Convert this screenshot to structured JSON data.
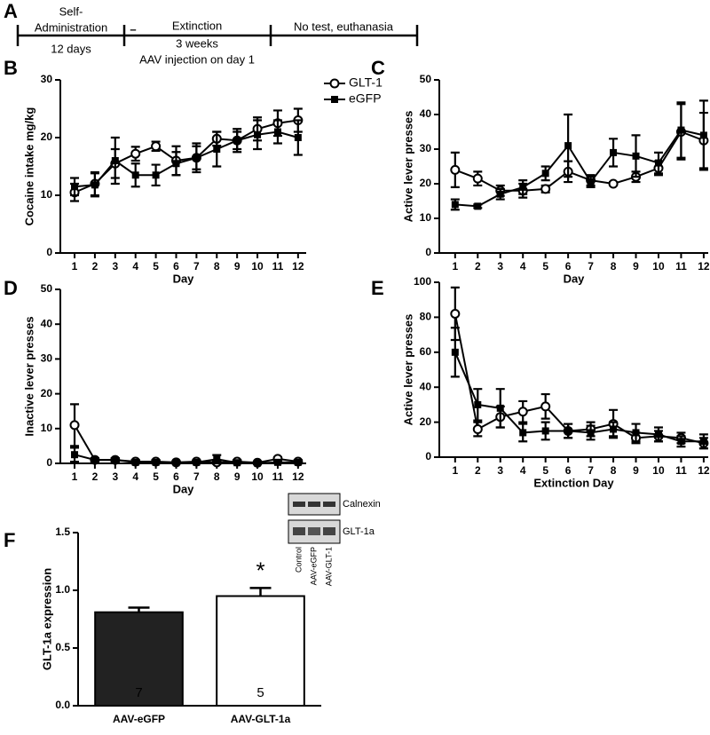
{
  "panel_labels": [
    "A",
    "B",
    "C",
    "D",
    "E",
    "F"
  ],
  "timeline": {
    "stages": [
      {
        "lines": [
          "Self-",
          "Administration"
        ],
        "sub": "12 days"
      },
      {
        "lines": [
          "Extinction"
        ],
        "sub": "3 weeks",
        "note": "AAV injection on day 1"
      },
      {
        "lines": [
          "No test, euthanasia"
        ]
      }
    ],
    "marker": "–"
  },
  "blot": {
    "bands": [
      "Calnexin",
      "GLT-1a"
    ],
    "lanes": [
      "Control",
      "AAV-eGFP",
      "AAV-GLT-1"
    ]
  },
  "chart_data": [
    {
      "type": "line",
      "ylabel": "Cocaine intake mg/kg",
      "xlabel": "Day",
      "x": [
        1,
        2,
        3,
        4,
        5,
        6,
        7,
        8,
        9,
        10,
        11,
        12
      ],
      "xlim": [
        0.3,
        12.4
      ],
      "xticks": [
        1,
        2,
        3,
        4,
        5,
        6,
        7,
        8,
        9,
        10,
        11,
        12
      ],
      "ylim": [
        0,
        30
      ],
      "yticks": [
        0,
        10,
        20,
        30
      ],
      "legend": "upper right",
      "series": [
        {
          "name": "GLT-1",
          "color": "#000000",
          "marker": "circle-open",
          "values": [
            10.5,
            12,
            15.5,
            17.2,
            18.5,
            16,
            16.5,
            19.8,
            19.5,
            21.5,
            22.5,
            23
          ],
          "errors": [
            1.5,
            2,
            2.5,
            1.2,
            0.8,
            2.5,
            2.5,
            1.2,
            1.5,
            2,
            2.2,
            2
          ]
        },
        {
          "name": "eGFP",
          "color": "#000000",
          "marker": "square",
          "values": [
            11.5,
            11.8,
            16,
            13.5,
            13.5,
            15.5,
            16.5,
            18,
            19.5,
            20.5,
            21,
            20
          ],
          "errors": [
            1.5,
            2,
            4,
            2,
            1.8,
            2,
            2,
            3,
            2,
            2.5,
            2,
            3
          ]
        }
      ]
    },
    {
      "type": "line",
      "ylabel": "Active lever presses",
      "xlabel": "Day",
      "x": [
        1,
        2,
        3,
        4,
        5,
        6,
        7,
        8,
        9,
        10,
        11,
        12
      ],
      "xlim": [
        0.3,
        12.2
      ],
      "xticks": [
        1,
        2,
        3,
        4,
        5,
        6,
        7,
        8,
        9,
        10,
        11,
        12
      ],
      "ylim": [
        0,
        50
      ],
      "yticks": [
        0,
        10,
        20,
        30,
        40,
        50
      ],
      "series": [
        {
          "name": "GLT-1",
          "color": "#000000",
          "marker": "circle-open",
          "values": [
            24,
            21.5,
            18,
            18,
            18.5,
            23.5,
            21,
            20,
            22,
            24.5,
            35,
            32.5
          ],
          "errors": [
            5,
            2,
            1.5,
            2,
            1,
            3,
            1.5,
            0.5,
            1.5,
            2,
            8,
            8
          ]
        },
        {
          "name": "eGFP",
          "color": "#000000",
          "marker": "square",
          "values": [
            14,
            13.5,
            17,
            19,
            23,
            31,
            20.5,
            29,
            28,
            26,
            35.5,
            34
          ],
          "errors": [
            1.5,
            0.5,
            1.5,
            2,
            2,
            9,
            1.5,
            4,
            6,
            3,
            8,
            10
          ]
        }
      ]
    },
    {
      "type": "line",
      "ylabel": "Inactive lever presses",
      "xlabel": "Day",
      "x": [
        1,
        2,
        3,
        4,
        5,
        6,
        7,
        8,
        9,
        10,
        11,
        12
      ],
      "xlim": [
        0.3,
        12.4
      ],
      "xticks": [
        1,
        2,
        3,
        4,
        5,
        6,
        7,
        8,
        9,
        10,
        11,
        12
      ],
      "ylim": [
        0,
        50
      ],
      "yticks": [
        0,
        10,
        20,
        30,
        40,
        50
      ],
      "series": [
        {
          "name": "GLT-1",
          "color": "#000000",
          "marker": "circle-open",
          "values": [
            11,
            1,
            1,
            0.5,
            0.5,
            0.3,
            0.5,
            0.3,
            0.5,
            0.2,
            1.3,
            0.5
          ],
          "errors": [
            6,
            0.5,
            0.5,
            0.5,
            0.5,
            0.3,
            0.3,
            0.5,
            0.5,
            0.2,
            0.5,
            0.5
          ]
        },
        {
          "name": "eGFP",
          "color": "#000000",
          "marker": "square",
          "values": [
            2.5,
            1,
            1,
            0.3,
            0.3,
            0.2,
            0.3,
            1.2,
            0.2,
            0.1,
            0.3,
            0.3
          ],
          "errors": [
            2,
            0.5,
            0.5,
            0.3,
            0.3,
            0.2,
            0.3,
            1.2,
            0.2,
            0.1,
            0.3,
            0.3
          ]
        }
      ]
    },
    {
      "type": "line",
      "ylabel": "Active lever presses",
      "xlabel": "Extinction Day",
      "x": [
        1,
        2,
        3,
        4,
        5,
        6,
        7,
        8,
        9,
        10,
        11,
        12
      ],
      "xlim": [
        0.3,
        12.2
      ],
      "xticks": [
        1,
        2,
        3,
        4,
        5,
        6,
        7,
        8,
        9,
        10,
        11,
        12
      ],
      "ylim": [
        0,
        100
      ],
      "yticks": [
        0,
        20,
        40,
        60,
        80,
        100
      ],
      "series": [
        {
          "name": "GLT-1",
          "color": "#000000",
          "marker": "circle-open",
          "values": [
            82,
            16,
            23,
            26,
            29,
            15,
            16,
            19,
            11,
            12,
            11,
            8
          ],
          "errors": [
            15,
            4,
            6,
            6,
            7,
            4,
            4,
            8,
            3,
            3,
            3,
            3
          ]
        },
        {
          "name": "eGFP",
          "color": "#000000",
          "marker": "square",
          "values": [
            60,
            30,
            28,
            14,
            15,
            15,
            14,
            16,
            14,
            13,
            9,
            9
          ],
          "errors": [
            14,
            9,
            11,
            5,
            5,
            4,
            4,
            4,
            5,
            4,
            3,
            4
          ]
        }
      ]
    },
    {
      "type": "bar",
      "ylabel": "GLT-1a expression",
      "categories": [
        "AAV-eGFP",
        "AAV-GLT-1a"
      ],
      "values": [
        0.81,
        0.95
      ],
      "errors": [
        0.04,
        0.07
      ],
      "colors": [
        "#222222",
        "#ffffff"
      ],
      "n_labels": [
        "7",
        "5"
      ],
      "annotation": "*",
      "ylim": [
        0,
        1.5
      ],
      "yticks": [
        {
          "value": 0,
          "label": "0.0"
        },
        {
          "value": 0.5,
          "label": "0.5"
        },
        {
          "value": 1,
          "label": "1.0"
        },
        {
          "value": 1.5,
          "label": "1.5"
        }
      ]
    }
  ]
}
